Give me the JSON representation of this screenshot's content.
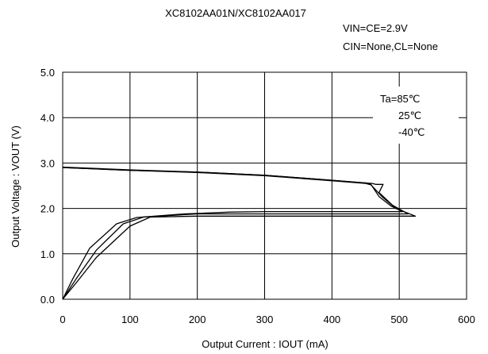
{
  "chart_data": {
    "type": "line",
    "title": "XC8102AA01N/XC8102AA017",
    "conditions": [
      "VIN=CE=2.9V",
      "CIN=None,CL=None"
    ],
    "xlabel": "Output Current : IOUT (mA)",
    "ylabel": "Output Voltage : VOUT (V)",
    "xlim": [
      0,
      600
    ],
    "ylim": [
      0,
      5
    ],
    "x_ticks": [
      0,
      100,
      200,
      300,
      400,
      500,
      600
    ],
    "y_ticks": [
      0,
      1,
      2,
      3,
      4,
      5
    ],
    "x_tick_labels": [
      "0",
      "100",
      "200",
      "300",
      "400",
      "500",
      "600"
    ],
    "y_tick_labels": [
      "0.0",
      "1.0",
      "2.0",
      "3.0",
      "4.0",
      "5.0"
    ],
    "grid": true,
    "legend_position": "top-right",
    "legend": [
      "Ta=85℃",
      "25℃",
      "-40℃"
    ],
    "series": [
      {
        "color": "#000000",
        "points": [
          [
            0,
            2.9
          ],
          [
            100,
            2.84
          ],
          [
            200,
            2.79
          ],
          [
            300,
            2.72
          ],
          [
            400,
            2.61
          ],
          [
            450,
            2.55
          ],
          [
            458,
            2.52
          ],
          [
            475,
            2.25
          ],
          [
            495,
            2.0
          ],
          [
            524,
            1.83
          ],
          [
            420,
            1.83
          ],
          [
            300,
            1.83
          ],
          [
            200,
            1.83
          ],
          [
            130,
            1.81
          ],
          [
            100,
            1.61
          ],
          [
            50,
            0.92
          ],
          [
            20,
            0.36
          ],
          [
            0,
            0
          ]
        ]
      },
      {
        "color": "#000000",
        "points": [
          [
            0,
            2.91
          ],
          [
            100,
            2.85
          ],
          [
            200,
            2.8
          ],
          [
            300,
            2.73
          ],
          [
            400,
            2.62
          ],
          [
            460,
            2.55
          ],
          [
            465,
            2.53
          ],
          [
            476,
            2.53
          ],
          [
            470,
            2.35
          ],
          [
            490,
            2.07
          ],
          [
            513,
            1.88
          ],
          [
            420,
            1.88
          ],
          [
            300,
            1.88
          ],
          [
            200,
            1.88
          ],
          [
            120,
            1.81
          ],
          [
            90,
            1.66
          ],
          [
            50,
            1.08
          ],
          [
            20,
            0.45
          ],
          [
            0,
            0
          ]
        ]
      },
      {
        "color": "#000000",
        "points": [
          [
            0,
            2.9
          ],
          [
            100,
            2.84
          ],
          [
            200,
            2.8
          ],
          [
            300,
            2.73
          ],
          [
            400,
            2.62
          ],
          [
            452,
            2.56
          ],
          [
            458,
            2.53
          ],
          [
            470,
            2.26
          ],
          [
            488,
            2.05
          ],
          [
            505,
            1.93
          ],
          [
            420,
            1.93
          ],
          [
            300,
            1.93
          ],
          [
            250,
            1.92
          ],
          [
            180,
            1.88
          ],
          [
            110,
            1.8
          ],
          [
            80,
            1.66
          ],
          [
            40,
            1.12
          ],
          [
            15,
            0.45
          ],
          [
            0,
            0
          ]
        ]
      }
    ]
  }
}
